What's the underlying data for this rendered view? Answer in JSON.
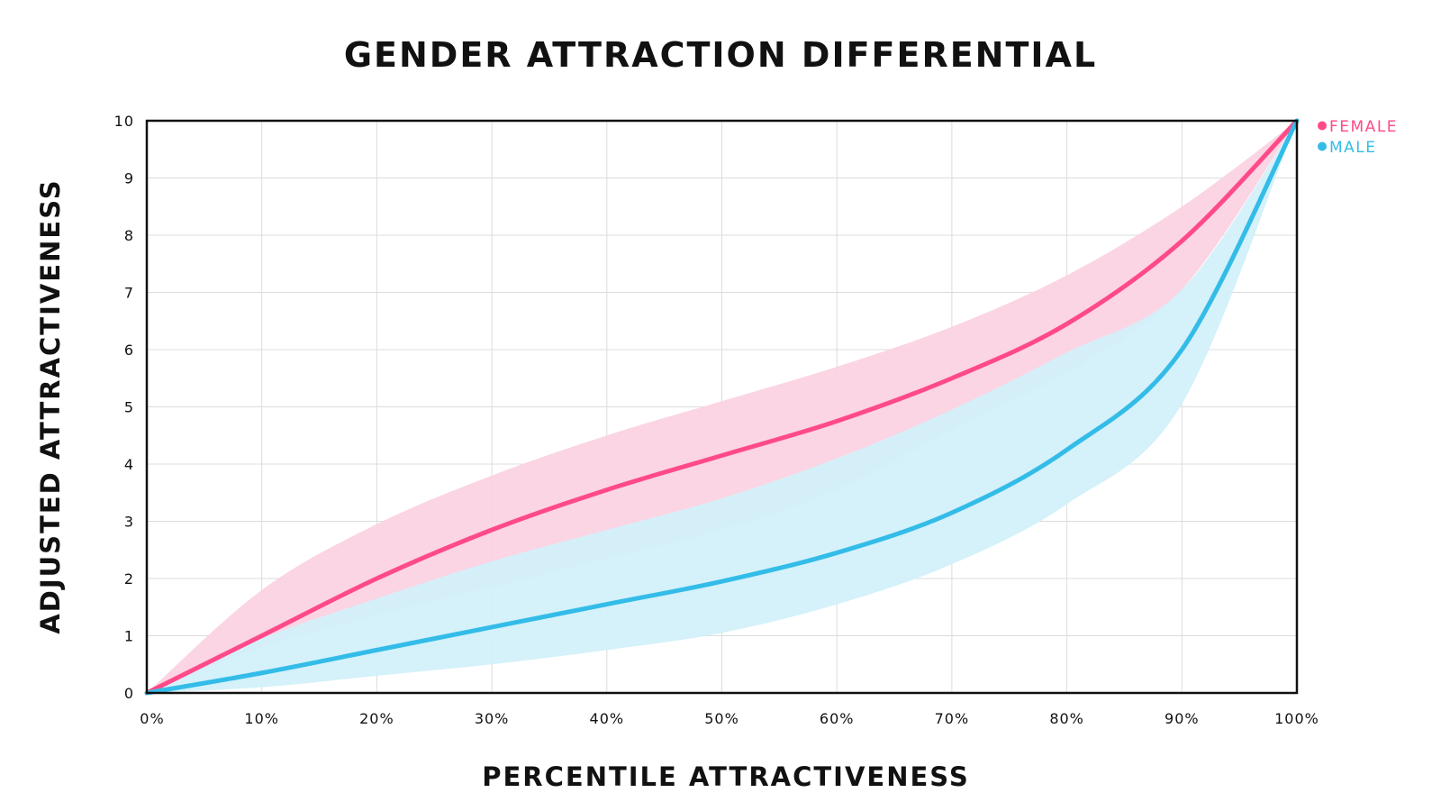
{
  "chart_data": {
    "type": "line",
    "title": "GENDER ATTRACTION DIFFERENTIAL",
    "xlabel": "PERCENTILE ATTRACTIVENESS",
    "ylabel": "ADJUSTED ATTRACTIVENESS",
    "xlim": [
      0,
      100
    ],
    "ylim": [
      0,
      10
    ],
    "x_tick_labels": [
      "0%",
      "10%",
      "20%",
      "30%",
      "40%",
      "50%",
      "60%",
      "70%",
      "80%",
      "90%",
      "100%"
    ],
    "y_tick_labels": [
      "0",
      "1",
      "2",
      "3",
      "4",
      "5",
      "6",
      "7",
      "8",
      "9",
      "10"
    ],
    "grid": true,
    "legend_position": "top-right",
    "x": [
      0,
      10,
      20,
      30,
      40,
      50,
      60,
      70,
      80,
      90,
      100
    ],
    "series": [
      {
        "name": "FEMALE",
        "color": "#ff4a8a",
        "band_color": "#fbd3e2",
        "values": [
          0,
          1.0,
          2.0,
          2.85,
          3.55,
          4.15,
          4.75,
          5.5,
          6.45,
          7.9,
          10
        ],
        "upper": [
          0,
          1.8,
          2.95,
          3.8,
          4.5,
          5.1,
          5.7,
          6.4,
          7.3,
          8.5,
          10
        ],
        "lower": [
          0,
          0.8,
          1.35,
          1.85,
          2.35,
          2.85,
          3.55,
          4.6,
          5.6,
          7.05,
          10
        ]
      },
      {
        "name": "MALE",
        "color": "#33bce8",
        "band_color": "#d3f0fa",
        "values": [
          0,
          0.35,
          0.75,
          1.15,
          1.55,
          1.95,
          2.45,
          3.15,
          4.25,
          6.0,
          10
        ],
        "upper": [
          0,
          0.95,
          1.65,
          2.3,
          2.85,
          3.4,
          4.1,
          4.95,
          5.95,
          7.05,
          10
        ],
        "lower": [
          0,
          0.1,
          0.3,
          0.5,
          0.75,
          1.05,
          1.55,
          2.25,
          3.3,
          5.05,
          10
        ]
      }
    ]
  }
}
